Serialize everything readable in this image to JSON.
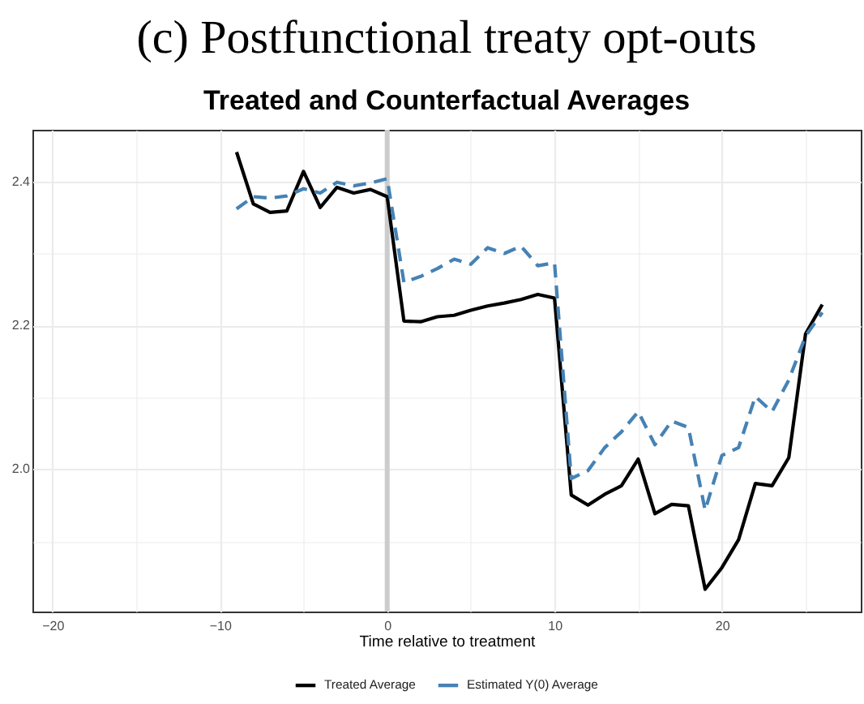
{
  "chart_data": {
    "type": "line",
    "title": "(c) Postfunctional treaty opt-outs",
    "subtitle": "Treated and Counterfactual Averages",
    "xlabel": "Time relative to treatment",
    "x": [
      -9,
      -8,
      -7,
      -6,
      -5,
      -4,
      -3,
      -2,
      -1,
      0,
      1,
      2,
      3,
      4,
      5,
      6,
      7,
      8,
      9,
      10,
      11,
      12,
      13,
      14,
      15,
      16,
      17,
      18,
      19,
      20,
      21,
      22,
      23,
      24,
      25,
      26
    ],
    "series": [
      {
        "name": "Treated Average",
        "color": "#000000",
        "line_style": "solid",
        "values": [
          2.441,
          2.369,
          2.357,
          2.359,
          2.414,
          2.364,
          2.392,
          2.384,
          2.389,
          2.379,
          2.206,
          2.205,
          2.212,
          2.214,
          2.221,
          2.227,
          2.231,
          2.236,
          2.243,
          2.238,
          1.964,
          1.95,
          1.965,
          1.977,
          2.014,
          1.938,
          1.951,
          1.949,
          1.833,
          1.863,
          1.902,
          1.98,
          1.977,
          2.016,
          2.188,
          2.229
        ]
      },
      {
        "name": "Estimated Y(0) Average",
        "color": "#4682b4",
        "line_style": "dashed",
        "values": [
          2.362,
          2.379,
          2.377,
          2.38,
          2.39,
          2.384,
          2.399,
          2.394,
          2.398,
          2.404,
          2.26,
          2.268,
          2.279,
          2.292,
          2.285,
          2.308,
          2.3,
          2.31,
          2.283,
          2.287,
          1.987,
          1.998,
          2.03,
          2.052,
          2.08,
          2.034,
          2.067,
          2.058,
          1.943,
          2.019,
          2.03,
          2.101,
          2.08,
          2.124,
          2.185,
          2.218
        ]
      }
    ],
    "xlim": [
      -21.2,
      28.3
    ],
    "xticks": [
      {
        "value": -20,
        "label": "−20"
      },
      {
        "value": -15,
        "label": null
      },
      {
        "value": -10,
        "label": "−10"
      },
      {
        "value": -5,
        "label": null
      },
      0,
      {
        "value": 5,
        "label": null
      },
      10,
      {
        "value": 15,
        "label": null
      },
      20,
      {
        "value": 25,
        "label": null
      }
    ],
    "ylim": [
      1.802,
      2.472
    ],
    "yticks": [
      {
        "value": 1.9,
        "label": null
      },
      {
        "value": 2,
        "label": "2.0"
      },
      {
        "value": 2.1,
        "label": null
      },
      2.2,
      {
        "value": 2.3,
        "label": null
      },
      2.4
    ],
    "grid": true,
    "legend": "bottom",
    "ref_lines": [
      {
        "axis": "x",
        "value": 0,
        "color": "#cccccc"
      }
    ]
  }
}
